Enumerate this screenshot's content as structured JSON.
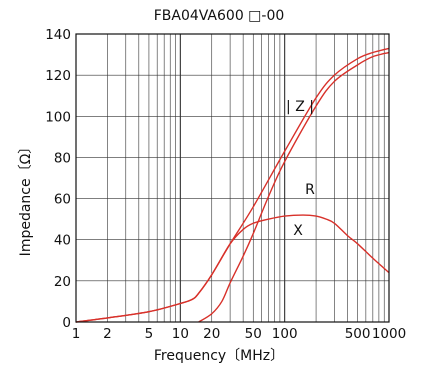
{
  "chart_data": {
    "type": "line",
    "title": "FBA04VA600 □-00",
    "xlabel": "Frequency〔MHz〕",
    "ylabel": "Impedance〔Ω〕",
    "xscale": "log",
    "xlim": [
      1,
      1000
    ],
    "ylim": [
      0,
      140
    ],
    "x_ticks": [
      {
        "value": 1,
        "label": "1"
      },
      {
        "value": 2,
        "label": "2"
      },
      {
        "value": 5,
        "label": "5"
      },
      {
        "value": 10,
        "label": "10"
      },
      {
        "value": 20,
        "label": "20"
      },
      {
        "value": 50,
        "label": "50"
      },
      {
        "value": 100,
        "label": "100"
      },
      {
        "value": 500,
        "label": "500"
      },
      {
        "value": 1000,
        "label": "1000"
      }
    ],
    "y_ticks": [
      0,
      20,
      40,
      60,
      80,
      100,
      120,
      140
    ],
    "grid": true,
    "line_color": "#d8312a",
    "series": [
      {
        "name": "|Z|",
        "x": [
          1,
          2,
          5,
          10,
          13,
          15,
          20,
          30,
          50,
          100,
          200,
          300,
          500,
          700,
          1000
        ],
        "y": [
          0,
          2,
          5,
          9,
          11,
          14,
          23,
          38,
          56,
          83,
          109,
          120,
          128,
          131,
          133
        ]
      },
      {
        "name": "R",
        "x": [
          15,
          20,
          25,
          30,
          40,
          50,
          70,
          100,
          200,
          300,
          500,
          700,
          1000
        ],
        "y": [
          0,
          4,
          10,
          19,
          32,
          43,
          61,
          78,
          105,
          117,
          125,
          129,
          131
        ]
      },
      {
        "name": "X",
        "x": [
          1,
          2,
          5,
          10,
          13,
          15,
          20,
          30,
          40,
          50,
          70,
          100,
          150,
          200,
          250,
          300,
          400,
          500,
          700,
          1000
        ],
        "y": [
          0,
          2,
          5,
          9,
          11,
          14,
          23,
          38,
          45,
          48,
          50,
          51.5,
          52,
          51.5,
          50,
          48,
          42,
          38,
          31,
          24
        ]
      }
    ],
    "annotations": [
      {
        "text": "| Z |",
        "series": "|Z|"
      },
      {
        "text": "R",
        "series": "R"
      },
      {
        "text": "X",
        "series": "X"
      }
    ]
  }
}
